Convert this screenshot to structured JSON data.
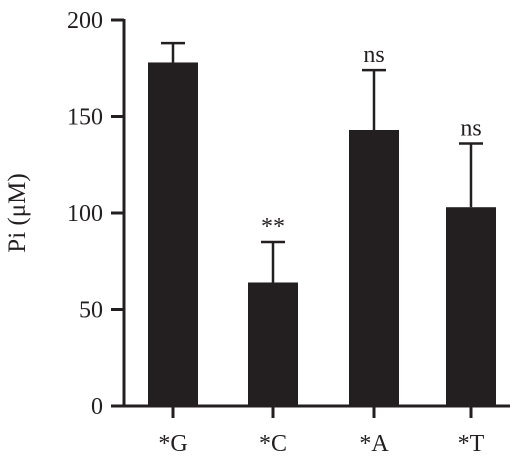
{
  "chart_data": {
    "type": "bar",
    "categories": [
      "*G",
      "*C",
      "*A",
      "*T"
    ],
    "values": [
      178,
      64,
      143,
      103
    ],
    "errors": [
      10,
      21,
      31,
      33
    ],
    "annotations": [
      "",
      "**",
      "ns",
      "ns"
    ],
    "ylabel": "Pi (μM)",
    "xlabel": "",
    "title": "",
    "ylim": [
      0,
      200
    ],
    "yticks": [
      0,
      50,
      100,
      150,
      200
    ],
    "grid": false,
    "legend": "none",
    "bar_color": "#231f20"
  }
}
